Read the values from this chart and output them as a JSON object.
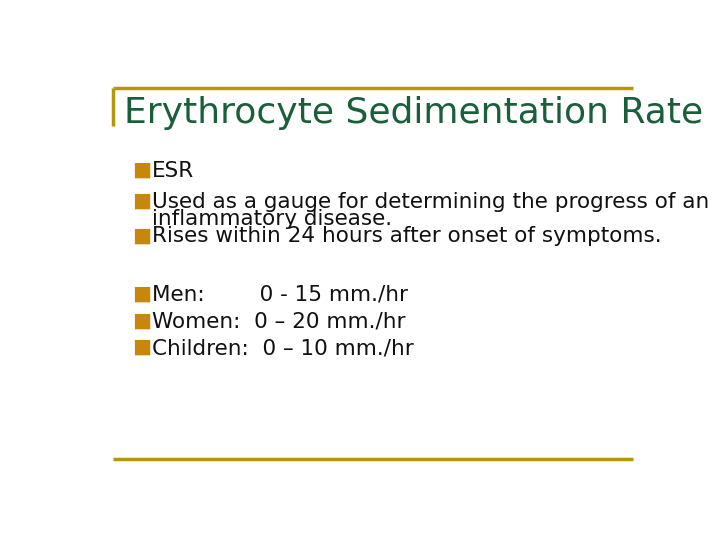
{
  "title": "Erythrocyte Sedimentation Rate",
  "title_color": "#1a5e3a",
  "title_fontsize": 26,
  "background_color": "#ffffff",
  "border_color": "#b8960c",
  "bullet_color": "#c8870a",
  "text_color": "#111111",
  "bullet_items_top": [
    "ESR",
    "Used as a gauge for determining the progress of an\ninflammatory disease.",
    "Rises within 24 hours after onset of symptoms."
  ],
  "bullet_items_bottom": [
    "Men:        0 - 15 mm./hr",
    "Women:  0 – 20 mm./hr",
    "Children:  0 – 10 mm./hr"
  ],
  "font_family": "DejaVu Sans",
  "body_fontsize": 15.5
}
